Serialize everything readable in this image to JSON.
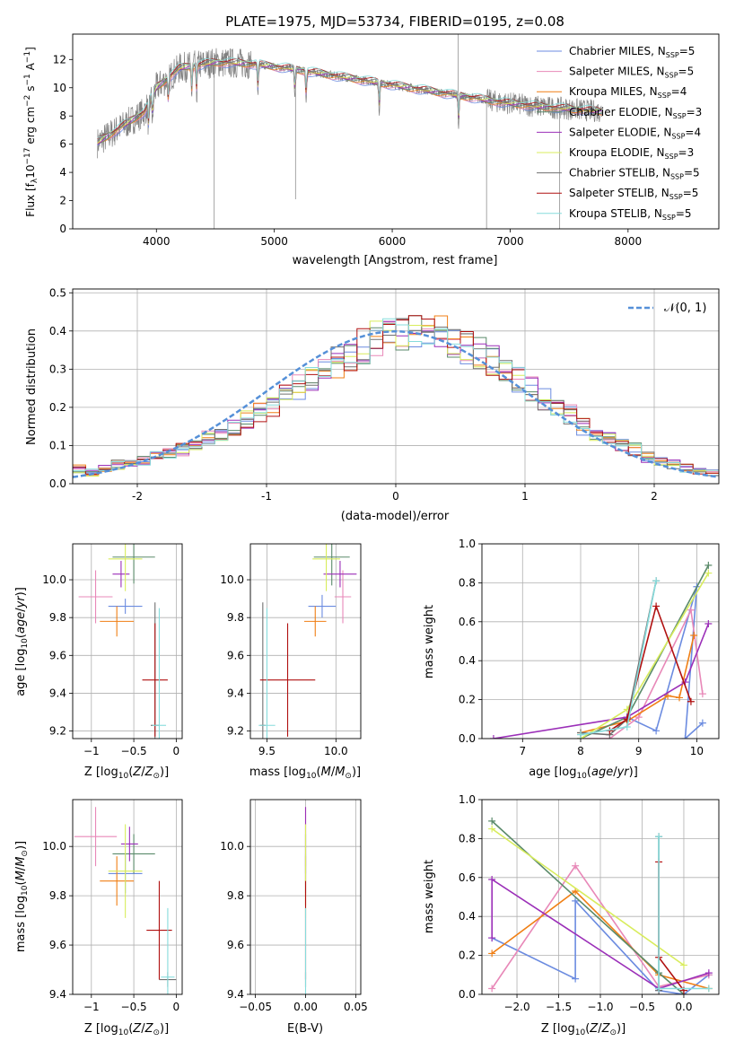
{
  "colors": {
    "Chabrier MILES": "#6b8be0",
    "Salpeter MILES": "#e888b8",
    "Kroupa MILES": "#f07f14",
    "Chabrier ELODIE": "#5a8a6a",
    "Salpeter ELODIE": "#9b2fb8",
    "Kroupa ELODIE": "#d8ec5c",
    "Chabrier STELIB": "#707070",
    "Salpeter STELIB": "#b01010",
    "Kroupa STELIB": "#86dcdc",
    "normal": "#5590d8"
  },
  "chart_data": [
    {
      "id": "spectrum",
      "type": "line",
      "title": "PLATE=1975, MJD=53734, FIBERID=0195, z=0.08",
      "xlabel": "wavelength [Angstrom, rest frame]",
      "ylabel": "Flux [f_λ10^-17 erg cm^-2 s^-1 A^-1]",
      "xlim": [
        3290,
        8770
      ],
      "ylim": [
        0,
        13.8
      ],
      "xticks": [
        4000,
        5000,
        6000,
        7000,
        8000
      ],
      "yticks": [
        0,
        2,
        4,
        6,
        8,
        10,
        12
      ],
      "grid": false,
      "legend_position": "upper-right",
      "legend": [
        {
          "model": "Chabrier MILES",
          "label": "Chabrier MILES, N",
          "sub": "SSP",
          "eq": "=5"
        },
        {
          "model": "Salpeter MILES",
          "label": "Salpeter MILES, N",
          "sub": "SSP",
          "eq": "=5"
        },
        {
          "model": "Kroupa MILES",
          "label": "Kroupa MILES, N",
          "sub": "SSP",
          "eq": "=4"
        },
        {
          "model": "Chabrier ELODIE",
          "label": "Chabrier ELODIE, N",
          "sub": "SSP",
          "eq": "=3"
        },
        {
          "model": "Salpeter ELODIE",
          "label": "Salpeter ELODIE, N",
          "sub": "SSP",
          "eq": "=4"
        },
        {
          "model": "Kroupa ELODIE",
          "label": "Kroupa ELODIE, N",
          "sub": "SSP",
          "eq": "=3"
        },
        {
          "model": "Chabrier STELIB",
          "label": "Chabrier STELIB, N",
          "sub": "SSP",
          "eq": "=5"
        },
        {
          "model": "Salpeter STELIB",
          "label": "Salpeter STELIB, N",
          "sub": "SSP",
          "eq": "=5"
        },
        {
          "model": "Kroupa STELIB",
          "label": "Kroupa STELIB, N",
          "sub": "SSP",
          "eq": "=5"
        }
      ],
      "continuum": {
        "wavelength": [
          3500,
          3700,
          3900,
          4000,
          4200,
          4500,
          4800,
          5100,
          5400,
          5700,
          6000,
          6300,
          6600,
          6900,
          7200,
          7500,
          7800
        ],
        "flux": [
          6.1,
          7.2,
          8.3,
          10.0,
          11.4,
          11.8,
          11.7,
          11.4,
          11.0,
          10.6,
          10.2,
          9.8,
          9.4,
          9.0,
          8.7,
          8.5,
          8.3
        ]
      },
      "absorption_features": [
        3934,
        3968,
        4102,
        4300,
        4340,
        4861,
        5175,
        5270,
        5890,
        6563
      ],
      "notable_spikes": [
        {
          "wavelength": 4490,
          "flux": 0
        },
        {
          "wavelength": 5180,
          "flux": 2.1
        },
        {
          "wavelength": 6560,
          "flux": 13.8
        },
        {
          "wavelength": 6800,
          "flux": 0
        },
        {
          "wavelength": 7420,
          "flux": 0
        }
      ]
    },
    {
      "id": "residuals",
      "type": "step",
      "xlabel": "(data-model)/error",
      "ylabel": "Normed distribution",
      "xlim": [
        -2.5,
        2.5
      ],
      "ylim": [
        0,
        0.51
      ],
      "xticks": [
        -2,
        -1,
        0,
        1,
        2
      ],
      "yticks": [
        0.0,
        0.1,
        0.2,
        0.3,
        0.4,
        0.5
      ],
      "grid": true,
      "legend_position": "upper-right",
      "normal_label": "𝒩(0, 1)",
      "bin_width": 0.1,
      "bin_start": -2.5,
      "reference_distribution": "normal",
      "reference_mean": 0,
      "reference_sigma": 1,
      "histogram_values": [
        0.04,
        0.03,
        0.04,
        0.05,
        0.05,
        0.06,
        0.07,
        0.08,
        0.09,
        0.1,
        0.12,
        0.13,
        0.15,
        0.17,
        0.19,
        0.2,
        0.23,
        0.25,
        0.27,
        0.3,
        0.32,
        0.34,
        0.36,
        0.38,
        0.39,
        0.4,
        0.41,
        0.4,
        0.39,
        0.38,
        0.36,
        0.34,
        0.32,
        0.29,
        0.27,
        0.25,
        0.22,
        0.19,
        0.18,
        0.15,
        0.13,
        0.12,
        0.1,
        0.09,
        0.07,
        0.06,
        0.05,
        0.04,
        0.03,
        0.03
      ],
      "note": "one step histogram per model; all nine follow the N(0,1) curve with peak values 0.33-0.48 near 0"
    },
    {
      "id": "z-age",
      "type": "errorbar",
      "xlabel": "Z [log₁₀(Z/Z⊙)]",
      "ylabel": "age  [log₁₀(age/yr)]",
      "xlim": [
        -1.22,
        0.07
      ],
      "ylim": [
        9.16,
        10.19
      ],
      "xticks": [
        -1,
        -0.5,
        0
      ],
      "xticklabels": [
        "−1",
        "−0.5",
        "0"
      ],
      "yticks": [
        9.2,
        9.4,
        9.6,
        9.8,
        10.0
      ],
      "yticklabels": [
        "9.2",
        "9.4",
        "9.6",
        "9.8",
        "10.0"
      ],
      "grid": true,
      "points": [
        {
          "model": "Chabrier MILES",
          "x": -0.6,
          "xerr": 0.2,
          "y": 9.86,
          "yerr": 0.04
        },
        {
          "model": "Salpeter MILES",
          "x": -0.95,
          "xerr": 0.2,
          "y": 9.91,
          "yerr": 0.14
        },
        {
          "model": "Kroupa MILES",
          "x": -0.7,
          "xerr": 0.2,
          "y": 9.78,
          "yerr": 0.08
        },
        {
          "model": "Chabrier ELODIE",
          "x": -0.5,
          "xerr": 0.25,
          "y": 10.12,
          "yerr": 0.14
        },
        {
          "model": "Salpeter ELODIE",
          "x": -0.65,
          "xerr": 0.1,
          "y": 10.03,
          "yerr": 0.07
        },
        {
          "model": "Kroupa ELODIE",
          "x": -0.6,
          "xerr": 0.2,
          "y": 10.11,
          "yerr": 0.17
        },
        {
          "model": "Chabrier STELIB",
          "x": -0.25,
          "xerr": 0.05,
          "y": 9.23,
          "yerr": 0.65
        },
        {
          "model": "Salpeter STELIB",
          "x": -0.25,
          "xerr": 0.15,
          "y": 9.47,
          "yerr": 0.3
        },
        {
          "model": "Kroupa STELIB",
          "x": -0.2,
          "xerr": 0.08,
          "y": 9.23,
          "yerr": 0.62
        }
      ]
    },
    {
      "id": "mass-age",
      "type": "errorbar",
      "xlabel": "mass [log₁₀(M/M⊙)]",
      "ylabel": "",
      "xlim": [
        9.38,
        10.18
      ],
      "ylim": [
        9.16,
        10.19
      ],
      "xticks": [
        9.5,
        10.0
      ],
      "xticklabels": [
        "9.5",
        "10.0"
      ],
      "yticks": [
        9.2,
        9.4,
        9.6,
        9.8,
        10.0
      ],
      "yticklabels": [
        "9.2",
        "9.4",
        "9.6",
        "9.8",
        "10.0"
      ],
      "grid": true,
      "points": [
        {
          "model": "Chabrier MILES",
          "x": 9.9,
          "xerr": 0.1,
          "y": 9.86,
          "yerr": 0.06
        },
        {
          "model": "Salpeter MILES",
          "x": 10.05,
          "xerr": 0.06,
          "y": 9.91,
          "yerr": 0.14
        },
        {
          "model": "Kroupa MILES",
          "x": 9.85,
          "xerr": 0.08,
          "y": 9.78,
          "yerr": 0.08
        },
        {
          "model": "Chabrier ELODIE",
          "x": 9.97,
          "xerr": 0.13,
          "y": 10.12,
          "yerr": 0.15
        },
        {
          "model": "Salpeter ELODIE",
          "x": 10.03,
          "xerr": 0.12,
          "y": 10.03,
          "yerr": 0.07
        },
        {
          "model": "Kroupa ELODIE",
          "x": 9.93,
          "xerr": 0.1,
          "y": 10.11,
          "yerr": 0.17
        },
        {
          "model": "Chabrier STELIB",
          "x": 9.47,
          "xerr": 0.02,
          "y": 9.23,
          "yerr": 0.65
        },
        {
          "model": "Salpeter STELIB",
          "x": 9.65,
          "xerr": 0.2,
          "y": 9.47,
          "yerr": 0.3
        },
        {
          "model": "Kroupa STELIB",
          "x": 9.5,
          "xerr": 0.06,
          "y": 9.23,
          "yerr": 0.62
        }
      ]
    },
    {
      "id": "age-weight",
      "type": "line",
      "xlabel": "age  [log₁₀(age/yr)]",
      "ylabel": "mass weight",
      "xlim": [
        6.3,
        10.38
      ],
      "ylim": [
        0,
        1.0
      ],
      "xticks": [
        7,
        8,
        9,
        10
      ],
      "yticks": [
        0.0,
        0.2,
        0.4,
        0.6,
        0.8,
        1.0
      ],
      "grid": true,
      "series": [
        {
          "model": "Chabrier MILES",
          "x": [
            8.8,
            9.3,
            10.0,
            9.8,
            10.1
          ],
          "y": [
            0.11,
            0.04,
            0.78,
            0.0,
            0.08
          ]
        },
        {
          "model": "Salpeter MILES",
          "x": [
            8.0,
            8.5,
            9.0,
            9.9,
            10.1
          ],
          "y": [
            0.0,
            0.0,
            0.11,
            0.66,
            0.23
          ]
        },
        {
          "model": "Kroupa MILES",
          "x": [
            8.0,
            8.8,
            9.5,
            9.7,
            9.95
          ],
          "y": [
            0.03,
            0.09,
            0.22,
            0.21,
            0.53
          ]
        },
        {
          "model": "Chabrier ELODIE",
          "x": [
            8.0,
            8.8,
            10.2
          ],
          "y": [
            0.0,
            0.11,
            0.89
          ]
        },
        {
          "model": "Salpeter ELODIE",
          "x": [
            6.5,
            8.8,
            9.8,
            10.2
          ],
          "y": [
            0.0,
            0.11,
            0.29,
            0.59
          ]
        },
        {
          "model": "Kroupa ELODIE",
          "x": [
            8.0,
            8.8,
            10.2
          ],
          "y": [
            0.0,
            0.15,
            0.85
          ]
        },
        {
          "model": "Chabrier STELIB",
          "x": [
            8.0,
            8.5,
            8.8,
            9.3
          ],
          "y": [
            0.03,
            0.02,
            0.1,
            0.81
          ]
        },
        {
          "model": "Salpeter STELIB",
          "x": [
            8.5,
            8.8,
            9.3,
            9.9
          ],
          "y": [
            0.04,
            0.1,
            0.68,
            0.19
          ]
        },
        {
          "model": "Kroupa STELIB",
          "x": [
            8.0,
            8.8,
            9.3
          ],
          "y": [
            0.02,
            0.06,
            0.81
          ]
        }
      ]
    },
    {
      "id": "z-mass",
      "type": "errorbar",
      "xlabel": "Z [log₁₀(Z/Z⊙)]",
      "ylabel": "mass [log₁₀(M/M⊙)]",
      "xlim": [
        -1.22,
        0.07
      ],
      "ylim": [
        9.4,
        10.19
      ],
      "xticks": [
        -1,
        -0.5,
        0
      ],
      "xticklabels": [
        "−1",
        "−0.5",
        "0"
      ],
      "yticks": [
        9.4,
        9.6,
        9.8,
        10.0
      ],
      "yticklabels": [
        "9.4",
        "9.6",
        "9.8",
        "10.0"
      ],
      "grid": true,
      "points": [
        {
          "model": "Chabrier MILES",
          "x": -0.6,
          "xerr": 0.2,
          "y": 9.89,
          "yerr": 0.08
        },
        {
          "model": "Salpeter MILES",
          "x": -0.95,
          "xerr": 0.25,
          "y": 10.04,
          "yerr": 0.12
        },
        {
          "model": "Kroupa MILES",
          "x": -0.7,
          "xerr": 0.2,
          "y": 9.86,
          "yerr": 0.1
        },
        {
          "model": "Chabrier ELODIE",
          "x": -0.5,
          "xerr": 0.25,
          "y": 9.97,
          "yerr": 0.08
        },
        {
          "model": "Salpeter ELODIE",
          "x": -0.55,
          "xerr": 0.1,
          "y": 10.01,
          "yerr": 0.07
        },
        {
          "model": "Kroupa ELODIE",
          "x": -0.6,
          "xerr": 0.2,
          "y": 9.9,
          "yerr": 0.19
        },
        {
          "model": "Chabrier STELIB",
          "x": -0.1,
          "xerr": 0.1,
          "y": 9.46,
          "yerr": 0.03
        },
        {
          "model": "Salpeter STELIB",
          "x": -0.2,
          "xerr": 0.15,
          "y": 9.66,
          "yerr": 0.2
        },
        {
          "model": "Kroupa STELIB",
          "x": -0.1,
          "xerr": 0.08,
          "y": 9.47,
          "yerr": 0.28
        }
      ]
    },
    {
      "id": "ebv-mass",
      "type": "errorbar",
      "xlabel": "E(B-V)",
      "ylabel": "",
      "xlim": [
        -0.055,
        0.055
      ],
      "ylim": [
        9.4,
        10.19
      ],
      "xticks": [
        -0.05,
        0.0,
        0.05
      ],
      "xticklabels": [
        "−0.05",
        "0.00",
        "0.05"
      ],
      "yticks": [
        9.4,
        9.6,
        9.8,
        10.0
      ],
      "yticklabels": [
        "9.4",
        "9.6",
        "9.8",
        "10.0"
      ],
      "grid": true,
      "points": [
        {
          "model": "Chabrier MILES",
          "x": 0,
          "xerr": 0,
          "y": 9.89,
          "yerr": 0.08
        },
        {
          "model": "Salpeter MILES",
          "x": 0,
          "xerr": 0,
          "y": 10.04,
          "yerr": 0.12
        },
        {
          "model": "Kroupa MILES",
          "x": 0,
          "xerr": 0,
          "y": 9.86,
          "yerr": 0.1
        },
        {
          "model": "Chabrier ELODIE",
          "x": 0,
          "xerr": 0,
          "y": 9.97,
          "yerr": 0.08
        },
        {
          "model": "Salpeter ELODIE",
          "x": 0,
          "xerr": 0,
          "y": 10.01,
          "yerr": 0.15
        },
        {
          "model": "Kroupa ELODIE",
          "x": 0,
          "xerr": 0,
          "y": 9.9,
          "yerr": 0.19
        },
        {
          "model": "Chabrier STELIB",
          "x": 0,
          "xerr": 0,
          "y": 9.46,
          "yerr": 0.03
        },
        {
          "model": "Salpeter STELIB",
          "x": 0,
          "xerr": 0,
          "y": 9.66,
          "yerr": 0.2
        },
        {
          "model": "Kroupa STELIB",
          "x": 0,
          "xerr": 0,
          "y": 9.47,
          "yerr": 0.28
        }
      ]
    },
    {
      "id": "z-weight",
      "type": "line",
      "xlabel": "Z [log₁₀(Z/Z⊙)]",
      "ylabel": "mass weight",
      "xlim": [
        -2.42,
        0.42
      ],
      "ylim": [
        0,
        1.0
      ],
      "xticks": [
        -2.0,
        -1.5,
        -1.0,
        -0.5,
        0.0
      ],
      "xticklabels": [
        "−2.0",
        "−1.5",
        "−1.0",
        "−0.5",
        "0.0"
      ],
      "yticks": [
        0.0,
        0.2,
        0.4,
        0.6,
        0.8,
        1.0
      ],
      "grid": true,
      "series": [
        {
          "model": "Chabrier MILES",
          "x": [
            -2.3,
            -1.3,
            -1.3,
            -0.3,
            0.0,
            0.3
          ],
          "y": [
            0.29,
            0.08,
            0.48,
            0.02,
            0.0,
            0.1
          ]
        },
        {
          "model": "Salpeter MILES",
          "x": [
            -2.3,
            -1.3,
            -0.3,
            0.3
          ],
          "y": [
            0.03,
            0.66,
            0.04,
            0.1
          ]
        },
        {
          "model": "Kroupa MILES",
          "x": [
            -2.3,
            -1.3,
            -0.3,
            0.3
          ],
          "y": [
            0.21,
            0.53,
            0.1,
            0.03
          ]
        },
        {
          "model": "Chabrier ELODIE",
          "x": [
            -2.3,
            -0.3,
            0.0
          ],
          "y": [
            0.89,
            0.11,
            0.0
          ]
        },
        {
          "model": "Salpeter ELODIE",
          "x": [
            -2.3,
            -2.3,
            -0.3,
            0.3
          ],
          "y": [
            0.29,
            0.59,
            0.03,
            0.11
          ]
        },
        {
          "model": "Kroupa ELODIE",
          "x": [
            -2.3,
            0.0
          ],
          "y": [
            0.85,
            0.15
          ]
        },
        {
          "model": "Chabrier STELIB",
          "x": [
            -0.3,
            -0.3
          ],
          "y": [
            0.81,
            0.02
          ]
        },
        {
          "model": "Salpeter STELIB",
          "x": [
            -0.3,
            -0.3,
            0.0
          ],
          "y": [
            0.68,
            0.19,
            0.02
          ]
        },
        {
          "model": "Kroupa STELIB",
          "x": [
            -0.3,
            -0.3,
            0.3
          ],
          "y": [
            0.81,
            0.03,
            0.03
          ]
        }
      ]
    }
  ]
}
